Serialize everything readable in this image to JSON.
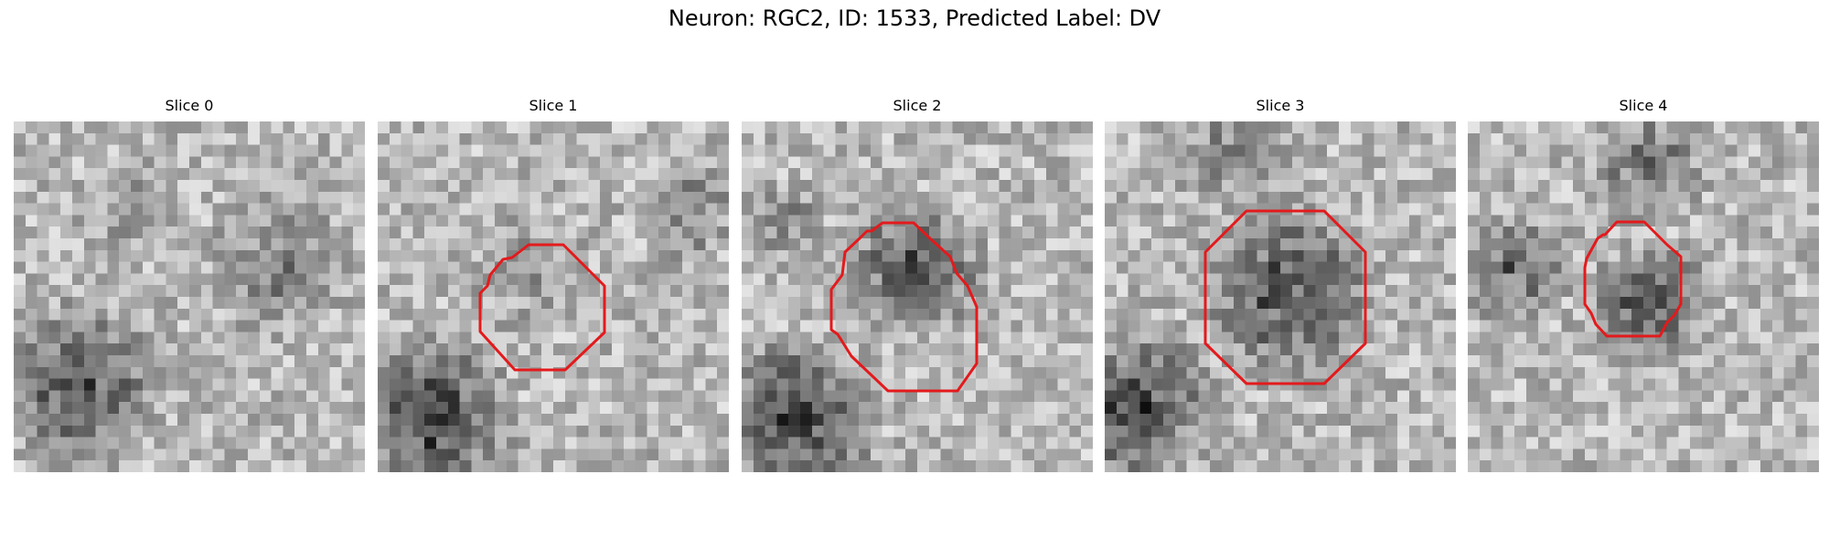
{
  "figure": {
    "title": "Neuron: RGC2, ID: 1533, Predicted Label: DV"
  },
  "contour_color": "#e31a1c",
  "slices": [
    {
      "title": "Slice 0"
    },
    {
      "title": "Slice 1"
    },
    {
      "title": "Slice 2"
    },
    {
      "title": "Slice 3"
    },
    {
      "title": "Slice 4"
    }
  ]
}
